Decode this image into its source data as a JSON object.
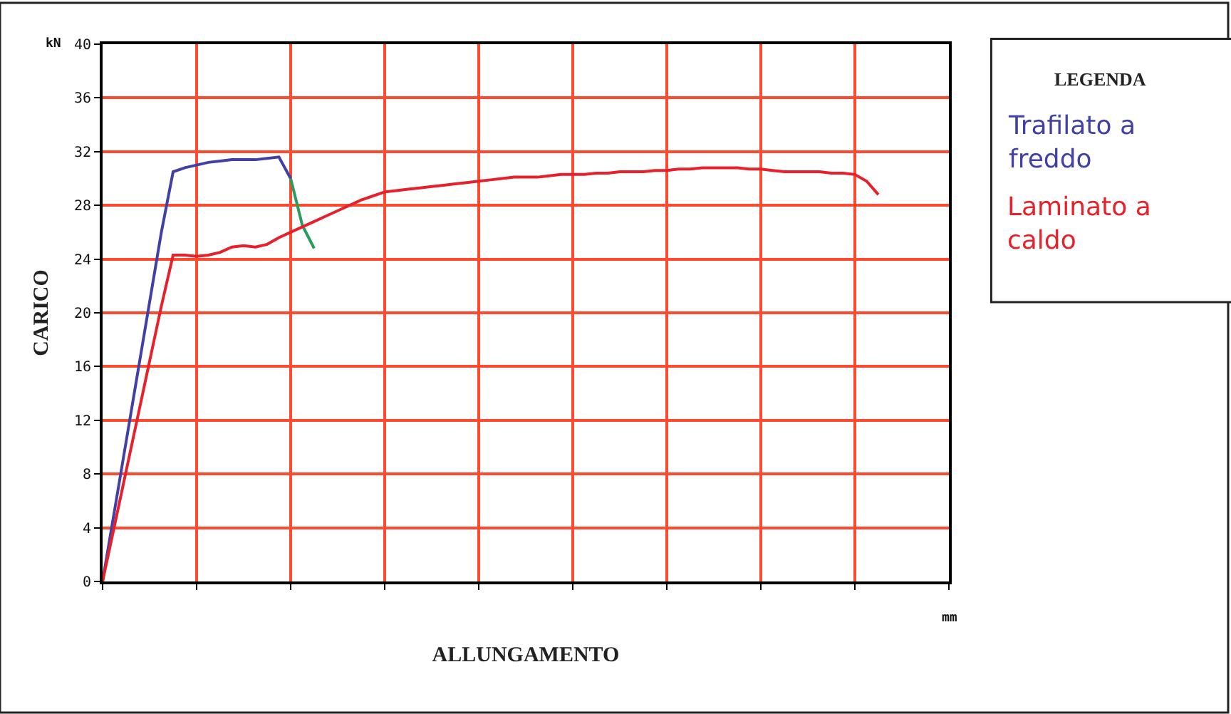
{
  "chart_data": {
    "type": "line",
    "xlabel": "ALLUNGAMENTO",
    "ylabel": "CARICO",
    "legend_title": "LEGENDA",
    "categories": [
      null,
      null,
      null,
      null,
      null,
      null,
      null,
      null,
      null,
      null,
      null,
      null,
      null,
      null,
      null,
      null,
      null,
      null,
      null,
      null,
      null,
      null,
      null,
      null,
      null,
      null,
      null,
      null,
      null,
      null,
      null,
      null,
      null,
      null,
      null,
      null,
      null,
      null,
      null,
      null,
      null,
      null,
      null,
      null,
      null,
      null,
      null,
      null,
      null,
      null,
      null,
      null,
      null,
      null,
      null,
      null,
      null,
      null,
      null,
      null,
      null,
      null,
      null,
      null,
      null,
      null,
      null,
      null,
      null,
      null,
      null,
      null,
      null
    ],
    "series": [
      {
        "name": "Trafilato a freddo",
        "color": "#4040a8",
        "values": [
          0,
          5.2,
          10.4,
          15.6,
          20.8,
          26.0,
          30.5,
          30.8,
          31.0,
          31.2,
          31.3,
          31.4,
          31.4,
          31.4,
          31.5,
          31.6,
          30.0,
          null,
          null,
          null,
          null,
          null,
          null,
          null,
          null,
          null,
          null,
          null,
          null,
          null,
          null,
          null,
          null,
          null,
          null,
          null,
          null,
          null,
          null,
          null,
          null,
          null,
          null,
          null,
          null,
          null,
          null,
          null,
          null,
          null,
          null,
          null,
          null,
          null,
          null,
          null,
          null,
          null,
          null,
          null,
          null,
          null,
          null,
          null,
          null,
          null,
          null,
          null,
          null,
          null,
          null,
          null,
          null
        ]
      },
      {
        "color": "#2a9d5a",
        "values": [
          null,
          null,
          null,
          null,
          null,
          null,
          null,
          null,
          null,
          null,
          null,
          null,
          null,
          null,
          null,
          null,
          30.0,
          26.5,
          24.8,
          null,
          null,
          null,
          null,
          null,
          null,
          null,
          null,
          null,
          null,
          null,
          null,
          null,
          null,
          null,
          null,
          null,
          null,
          null,
          null,
          null,
          null,
          null,
          null,
          null,
          null,
          null,
          null,
          null,
          null,
          null,
          null,
          null,
          null,
          null,
          null,
          null,
          null,
          null,
          null,
          null,
          null,
          null,
          null,
          null,
          null,
          null,
          null,
          null,
          null,
          null,
          null,
          null,
          null
        ]
      },
      {
        "name": "Laminato a caldo",
        "color": "#e8202a",
        "values": [
          0,
          4.1,
          8.2,
          12.3,
          16.4,
          20.5,
          24.3,
          24.3,
          24.2,
          24.3,
          24.5,
          24.9,
          25.0,
          24.9,
          25.1,
          25.6,
          26.0,
          26.4,
          26.8,
          27.2,
          27.6,
          28.0,
          28.4,
          28.7,
          29.0,
          29.1,
          29.2,
          29.3,
          29.4,
          29.5,
          29.6,
          29.7,
          29.8,
          29.9,
          30.0,
          30.1,
          30.1,
          30.1,
          30.2,
          30.3,
          30.3,
          30.3,
          30.4,
          30.4,
          30.5,
          30.5,
          30.5,
          30.6,
          30.6,
          30.7,
          30.7,
          30.8,
          30.8,
          30.8,
          30.8,
          30.7,
          30.7,
          30.6,
          30.5,
          30.5,
          30.5,
          30.5,
          30.4,
          30.4,
          30.3,
          29.8,
          28.8,
          null,
          null,
          null,
          null,
          null,
          null
        ]
      }
    ],
    "ylim": [
      0,
      40
    ],
    "yticks": [
      0,
      4,
      8,
      12,
      16,
      20,
      24,
      28,
      32,
      36,
      40
    ],
    "grid": true,
    "legend": "right",
    "marker": "none",
    "line_style": "solid",
    "annotations": [
      "kN",
      "mm"
    ]
  }
}
